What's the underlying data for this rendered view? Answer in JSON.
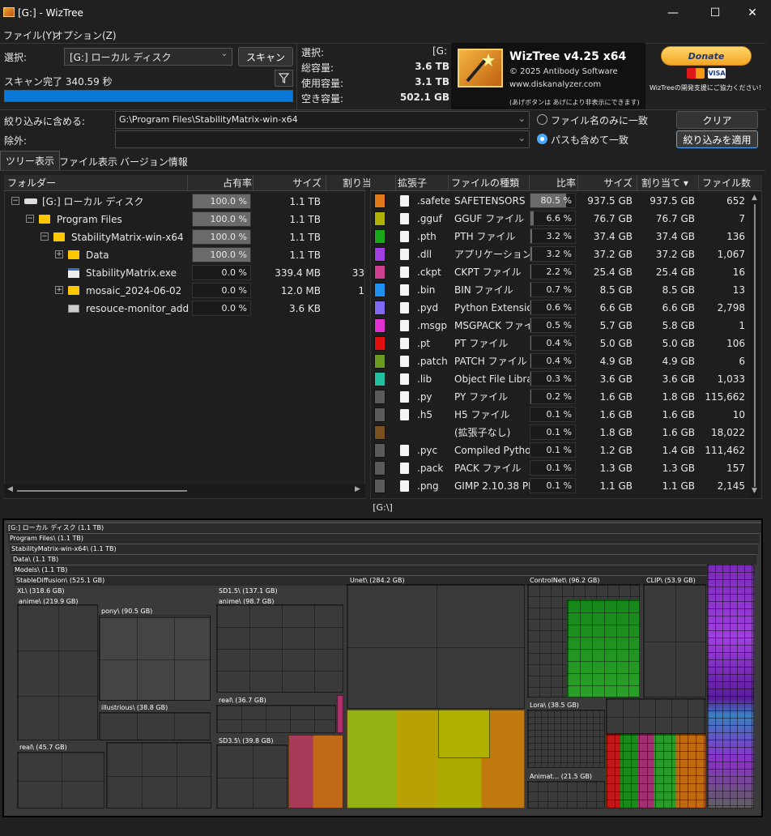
{
  "window": {
    "title": "[G:]  - WizTree",
    "min": "—",
    "max": "☐",
    "close": "✕"
  },
  "menu": [
    "ファイル(Y)",
    "オプション(Z)"
  ],
  "scan": {
    "select_label": "選択:",
    "drive": "[G:] ローカル ディスク",
    "scan_button": "スキャン",
    "status": "スキャン完了 340.59 秒",
    "progress": 1.0
  },
  "stats": {
    "select_label": "選択:",
    "select_value": "[G:",
    "total_label": "総容量:",
    "total_value": "3.6 TB",
    "used_label": "使用容量:",
    "used_value": "3.1 TB",
    "free_label": "空き容量:",
    "free_value": "502.1 GB"
  },
  "banner": {
    "name": "WizTree v4.25 x64",
    "copyright": "© 2025 Antibody Software",
    "url": "www.diskanalyzer.com",
    "note": "(あげボタンは あげにより非表示にできます)"
  },
  "donate": {
    "label": "Donate",
    "note": "WizTreeの開発支援にご協力ください！"
  },
  "filter": {
    "include_label": "絞り込みに含める:",
    "include_value": "G:\\Program Files\\StabilityMatrix-win-x64",
    "exclude_label": "除外:",
    "exclude_value": "",
    "radio_name": "ファイル名のみに一致",
    "radio_path": "パスも含めて一致",
    "clear": "クリア",
    "apply": "絞り込みを適用"
  },
  "tabs": [
    "ツリー表示",
    "ファイル表示",
    "バージョン情報"
  ],
  "tree": {
    "headers": [
      "フォルダー",
      "占有率",
      "サイズ",
      "割り当"
    ],
    "rows": [
      {
        "name": "[G:] ローカル ディスク",
        "pct": "100.0 %",
        "pctv": 1.0,
        "size": "1.1 TB",
        "alloc": "",
        "indent": 0,
        "type": "drive",
        "exp": "−"
      },
      {
        "name": "Program Files",
        "pct": "100.0 %",
        "pctv": 1.0,
        "size": "1.1 TB",
        "alloc": "",
        "indent": 1,
        "type": "folder",
        "exp": "−"
      },
      {
        "name": "StabilityMatrix-win-x64",
        "pct": "100.0 %",
        "pctv": 1.0,
        "size": "1.1 TB",
        "alloc": "",
        "indent": 2,
        "type": "folder",
        "exp": "−"
      },
      {
        "name": "Data",
        "pct": "100.0 %",
        "pctv": 1.0,
        "size": "1.1 TB",
        "alloc": "",
        "indent": 3,
        "type": "folder",
        "exp": "+"
      },
      {
        "name": "StabilityMatrix.exe",
        "pct": "0.0 %",
        "pctv": 0.0,
        "size": "339.4 MB",
        "alloc": "33",
        "indent": 3,
        "type": "exe",
        "exp": ""
      },
      {
        "name": "mosaic_2024-06-02",
        "pct": "0.0 %",
        "pctv": 0.0,
        "size": "12.0 MB",
        "alloc": "1",
        "indent": 3,
        "type": "folder",
        "exp": "+"
      },
      {
        "name": "resouce-monitor_add",
        "pct": "0.0 %",
        "pctv": 0.0,
        "size": "3.6 KB",
        "alloc": "",
        "indent": 3,
        "type": "file",
        "exp": ""
      }
    ]
  },
  "ext": {
    "headers": [
      "拡張子",
      "ファイルの種類",
      "比率",
      "サイズ",
      "割り当て ▾",
      "ファイル数"
    ],
    "rows": [
      {
        "color": "#e07818",
        "ext": ".safete",
        "type": "SAFETENSORS フ",
        "pct": "80.5 %",
        "pctv": 0.805,
        "size": "937.5 GB",
        "alloc": "937.5 GB",
        "count": "652"
      },
      {
        "color": "#b0b000",
        "ext": ".gguf",
        "type": "GGUF ファイル",
        "pct": "6.6 %",
        "pctv": 0.066,
        "size": "76.7 GB",
        "alloc": "76.7 GB",
        "count": "7"
      },
      {
        "color": "#18a818",
        "ext": ".pth",
        "type": "PTH ファイル",
        "pct": "3.2 %",
        "pctv": 0.032,
        "size": "37.4 GB",
        "alloc": "37.4 GB",
        "count": "136"
      },
      {
        "color": "#a040e0",
        "ext": ".dll",
        "type": "アプリケーション拡",
        "pct": "3.2 %",
        "pctv": 0.032,
        "size": "37.2 GB",
        "alloc": "37.2 GB",
        "count": "1,067"
      },
      {
        "color": "#d04090",
        "ext": ".ckpt",
        "type": "CKPT ファイル",
        "pct": "2.2 %",
        "pctv": 0.022,
        "size": "25.4 GB",
        "alloc": "25.4 GB",
        "count": "16"
      },
      {
        "color": "#2090f0",
        "ext": ".bin",
        "type": "BIN ファイル",
        "pct": "0.7 %",
        "pctv": 0.007,
        "size": "8.5 GB",
        "alloc": "8.5 GB",
        "count": "13"
      },
      {
        "color": "#8068f0",
        "ext": ".pyd",
        "type": "Python Extensio",
        "pct": "0.6 %",
        "pctv": 0.006,
        "size": "6.6 GB",
        "alloc": "6.6 GB",
        "count": "2,798"
      },
      {
        "color": "#e030d0",
        "ext": ".msgp",
        "type": "MSGPACK ファイル",
        "pct": "0.5 %",
        "pctv": 0.005,
        "size": "5.7 GB",
        "alloc": "5.8 GB",
        "count": "1"
      },
      {
        "color": "#e01010",
        "ext": ".pt",
        "type": "PT ファイル",
        "pct": "0.4 %",
        "pctv": 0.004,
        "size": "5.0 GB",
        "alloc": "5.0 GB",
        "count": "106"
      },
      {
        "color": "#6a9a20",
        "ext": ".patch",
        "type": "PATCH ファイル",
        "pct": "0.4 %",
        "pctv": 0.004,
        "size": "4.9 GB",
        "alloc": "4.9 GB",
        "count": "6"
      },
      {
        "color": "#20c0a0",
        "ext": ".lib",
        "type": "Object File Libra",
        "pct": "0.3 %",
        "pctv": 0.003,
        "size": "3.6 GB",
        "alloc": "3.6 GB",
        "count": "1,033"
      },
      {
        "color": "#5a5a5a",
        "ext": ".py",
        "type": "PY ファイル",
        "pct": "0.2 %",
        "pctv": 0.002,
        "size": "1.6 GB",
        "alloc": "1.8 GB",
        "count": "115,662"
      },
      {
        "color": "#5a5a5a",
        "ext": ".h5",
        "type": "H5 ファイル",
        "pct": "0.1 %",
        "pctv": 0.001,
        "size": "1.6 GB",
        "alloc": "1.6 GB",
        "count": "10"
      },
      {
        "color": "#7a5020",
        "ext": "",
        "type": "(拡張子なし)",
        "pct": "0.1 %",
        "pctv": 0.001,
        "size": "1.8 GB",
        "alloc": "1.6 GB",
        "count": "18,022"
      },
      {
        "color": "#5a5a5a",
        "ext": ".pyc",
        "type": "Compiled Pytho",
        "pct": "0.1 %",
        "pctv": 0.001,
        "size": "1.2 GB",
        "alloc": "1.4 GB",
        "count": "111,462"
      },
      {
        "color": "#5a5a5a",
        "ext": ".pack",
        "type": "PACK ファイル",
        "pct": "0.1 %",
        "pctv": 0.001,
        "size": "1.3 GB",
        "alloc": "1.3 GB",
        "count": "157"
      },
      {
        "color": "#5a5a5a",
        "ext": ".png",
        "type": "GIMP 2.10.38 PN",
        "pct": "0.1 %",
        "pctv": 0.001,
        "size": "1.1 GB",
        "alloc": "1.1 GB",
        "count": "2,145"
      }
    ]
  },
  "treemap": {
    "path": "[G:\\]",
    "headers": [
      "[G:] ローカル ディスク (1.1 TB)",
      "Program Files\\ (1.1 TB)",
      "StabilityMatrix-win-x64\\ (1.1 TB)",
      "Data\\ (1.1 TB)",
      "Models\\ (1.1 TB)",
      "StableDiffusion\\ (525.1 GB)"
    ],
    "blocks": [
      "XL\\ (318.6 GB)",
      "anime\\ (219.9 GB)",
      "pony\\ (90.5 GB)",
      "illustrious\\ (38.8 GB)",
      "real\\ (45.7 GB)",
      "SD1.5\\ (137.1 GB)",
      "anime\\ (98.7 GB)",
      "real\\ (36.7 GB)",
      "SD3.5\\ (39.8 GB)",
      "Unet\\ (284.2 GB)",
      "ControlNet\\ (96.2 GB)",
      "CLIP\\ (53.9 GB)",
      "Lora\\ (38.5 GB)",
      "Animat... (21.5 GB)"
    ]
  }
}
